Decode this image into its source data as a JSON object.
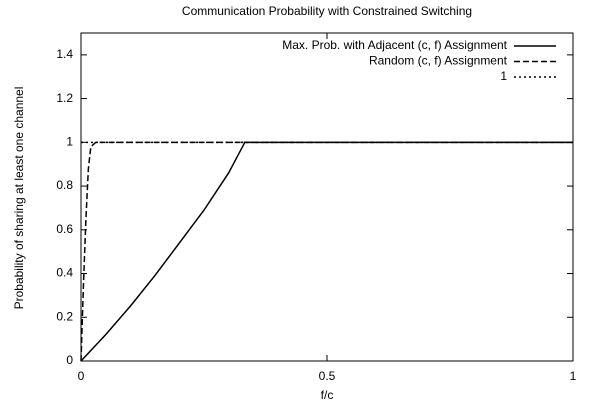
{
  "chart_data": {
    "type": "line",
    "title": "Communication Probability with Constrained Switching",
    "xlabel": "f/c",
    "ylabel": "Probability of sharing at least one channel",
    "x": [
      0,
      0.005,
      0.01,
      0.015,
      0.02,
      0.03,
      0.05,
      0.1,
      0.15,
      0.2,
      0.25,
      0.3,
      0.333,
      0.5,
      1
    ],
    "series": [
      {
        "name": "Max. Prob. with Adjacent (c, f) Assignment",
        "color": "#000000",
        "dash": "solid",
        "values": [
          0,
          0.012,
          0.024,
          0.036,
          0.048,
          0.072,
          0.12,
          0.25,
          0.39,
          0.54,
          0.69,
          0.86,
          1,
          1,
          1
        ]
      },
      {
        "name": "Random (c, f) Assignment",
        "color": "#000000",
        "dash": "dashed",
        "values": [
          0,
          0.35,
          0.65,
          0.88,
          0.98,
          1,
          1,
          1,
          1,
          1,
          1,
          1,
          1,
          1,
          1
        ]
      },
      {
        "name": "1",
        "color": "#000000",
        "dash": "dotted",
        "values": [
          1,
          1,
          1,
          1,
          1,
          1,
          1,
          1,
          1,
          1,
          1,
          1,
          1,
          1,
          1
        ]
      }
    ],
    "xlim": [
      0,
      1
    ],
    "xticks": [
      0,
      0.5,
      1
    ],
    "ylim": [
      0,
      1.5
    ],
    "yticks": [
      0,
      0.2,
      0.4,
      0.6,
      0.8,
      1,
      1.2,
      1.4
    ],
    "legend": "top-right",
    "grid": false
  }
}
